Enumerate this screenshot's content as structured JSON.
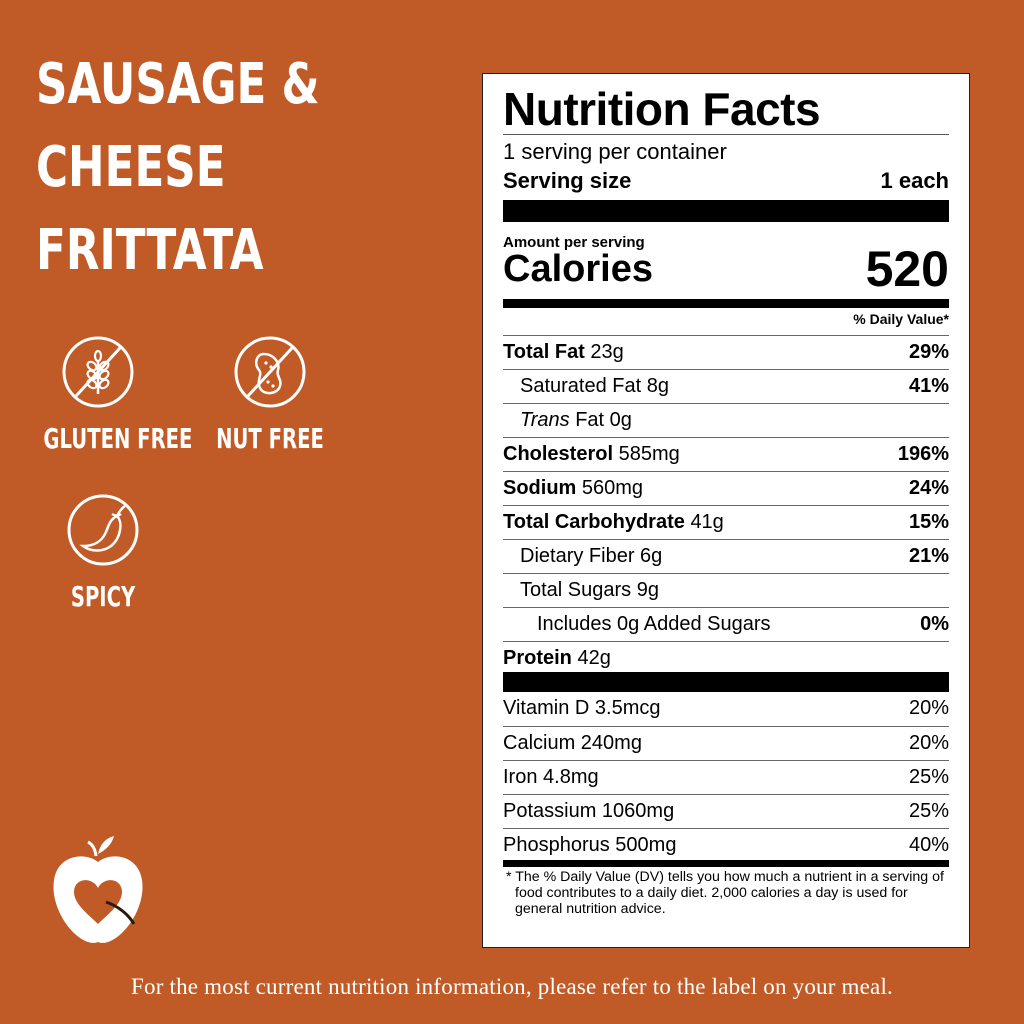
{
  "product": {
    "title_lines": [
      "SAUSAGE &",
      "CHEESE",
      "FRITTATA"
    ]
  },
  "badges": [
    {
      "icon": "gluten-free-icon",
      "label": "GLUTEN FREE"
    },
    {
      "icon": "nut-free-icon",
      "label": "NUT FREE"
    },
    {
      "icon": "spicy-icon",
      "label": "SPICY"
    }
  ],
  "nutrition": {
    "title": "Nutrition Facts",
    "servings_per_container": "1 serving per container",
    "serving_size_label": "Serving size",
    "serving_size_value": "1 each",
    "amount_per_serving": "Amount per serving",
    "calories_label": "Calories",
    "calories_value": "520",
    "daily_value_header": "% Daily Value*",
    "nutrients": [
      {
        "name": "Total Fat",
        "amount": "23g",
        "dv": "29%"
      },
      {
        "name": "Saturated Fat",
        "amount": "8g",
        "dv": "41%"
      },
      {
        "name": "Trans",
        "amount": "Fat 0g",
        "dv": ""
      },
      {
        "name": "Cholesterol",
        "amount": "585mg",
        "dv": "196%"
      },
      {
        "name": "Sodium",
        "amount": "560mg",
        "dv": "24%"
      },
      {
        "name": "Total Carbohydrate",
        "amount": "41g",
        "dv": "15%"
      },
      {
        "name": "Dietary Fiber",
        "amount": "6g",
        "dv": "21%"
      },
      {
        "name": "Total Sugars",
        "amount": "9g",
        "dv": ""
      },
      {
        "name": "Includes 0g Added Sugars",
        "amount": "",
        "dv": "0%"
      },
      {
        "name": "Protein",
        "amount": "42g",
        "dv": ""
      }
    ],
    "vitamins": [
      {
        "name": "Vitamin D 3.5mcg",
        "dv": "20%"
      },
      {
        "name": "Calcium 240mg",
        "dv": "20%"
      },
      {
        "name": "Iron 4.8mg",
        "dv": "25%"
      },
      {
        "name": "Potassium 1060mg",
        "dv": "25%"
      },
      {
        "name": "Phosphorus 500mg",
        "dv": "40%"
      }
    ],
    "footnote": "* The % Daily Value (DV) tells you how much a nutrient in a serving of food contributes to a daily diet. 2,000 calories a day is used for general nutrition advice."
  },
  "footer": {
    "text": "For the most current nutrition information, please refer to the label on your meal."
  },
  "colors": {
    "background": "#c05a26",
    "label_background": "#ffffff",
    "text_light": "#ffffff"
  }
}
